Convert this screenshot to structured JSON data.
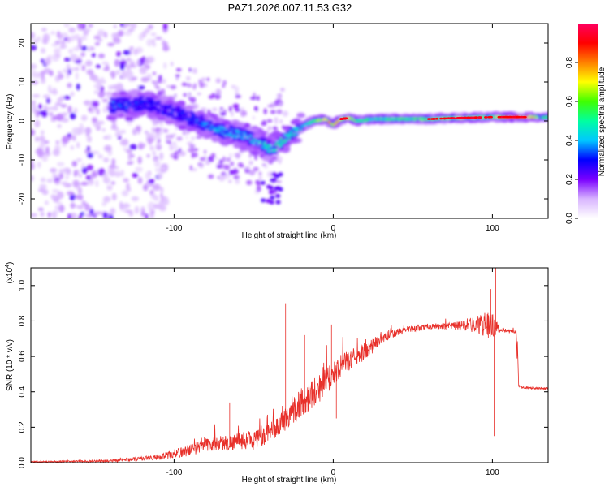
{
  "title": "PAZ1.2026.007.11.53.G32",
  "chart_data": [
    {
      "type": "heatmap",
      "xlabel": "Height of straight line (km)",
      "ylabel": "Frequency (Hz)",
      "xlim": [
        -190,
        135
      ],
      "ylim": [
        -25,
        25
      ],
      "xticks": [
        -100,
        0,
        100
      ],
      "xtick_labels": [
        "-100",
        "0",
        "100"
      ],
      "yticks": [
        -20,
        -10,
        0,
        10,
        20
      ],
      "ytick_labels": [
        "-20",
        "-10",
        "0",
        "10",
        "20"
      ],
      "colorbar": {
        "label": "Normalized spectral amplitude",
        "range": [
          0,
          1
        ],
        "ticks": [
          0.0,
          0.2,
          0.4,
          0.6,
          0.8
        ],
        "tick_labels": [
          "0.0",
          "0.2",
          "0.4",
          "0.6",
          "0.8"
        ],
        "colormap": [
          "#ffffff",
          "#d8b4ff",
          "#7a00ff",
          "#0000ff",
          "#00c8ff",
          "#00ffa0",
          "#40ff00",
          "#ffff00",
          "#ff8000",
          "#ff0000",
          "#ff0060"
        ]
      },
      "ridge": {
        "x": [
          -135,
          -120,
          -105,
          -95,
          -85,
          -75,
          -65,
          -55,
          -45,
          -38,
          -32,
          -25,
          -18,
          -12,
          -5,
          0,
          5,
          10,
          15,
          25,
          40,
          60,
          80,
          100,
          115,
          135
        ],
        "freq": [
          4,
          4.5,
          3,
          1.5,
          0,
          -2,
          -3,
          -4,
          -6,
          -7.5,
          -5,
          -3,
          -1,
          0,
          0.5,
          -1,
          0.5,
          0.8,
          0,
          0.5,
          0.5,
          0.5,
          0.8,
          1,
          1,
          1
        ],
        "amp": [
          0.35,
          0.3,
          0.3,
          0.3,
          0.35,
          0.4,
          0.4,
          0.4,
          0.45,
          0.5,
          0.5,
          0.5,
          0.45,
          0.6,
          0.7,
          0.8,
          0.7,
          0.75,
          0.6,
          0.5,
          0.55,
          0.6,
          0.7,
          0.6,
          0.95,
          0.5
        ]
      }
    },
    {
      "type": "line",
      "xlabel": "Height of straight line (km)",
      "ylabel": "SNR (10 * v/v)",
      "multiplier": "(x10^4)",
      "multiplier_base": "(x10",
      "multiplier_exp": "4",
      "xlim": [
        -190,
        135
      ],
      "ylim": [
        0,
        1.1
      ],
      "xticks": [
        -100,
        0,
        100
      ],
      "xtick_labels": [
        "-100",
        "0",
        "100"
      ],
      "yticks": [
        0.0,
        0.2,
        0.4,
        0.6,
        0.8,
        1.0
      ],
      "ytick_labels": [
        "0.0",
        "0.2",
        "0.4",
        "0.6",
        "0.8",
        "1.0"
      ],
      "color": "#e8302a",
      "envelope": {
        "x": [
          -190,
          -140,
          -110,
          -95,
          -80,
          -60,
          -45,
          -35,
          -25,
          -15,
          -5,
          5,
          20,
          30,
          45,
          60,
          75,
          90,
          99,
          102,
          105,
          115,
          116,
          125,
          135
        ],
        "y": [
          0.005,
          0.01,
          0.03,
          0.06,
          0.1,
          0.12,
          0.14,
          0.2,
          0.3,
          0.38,
          0.45,
          0.55,
          0.63,
          0.7,
          0.75,
          0.77,
          0.77,
          0.78,
          0.78,
          0.76,
          0.75,
          0.74,
          0.43,
          0.42,
          0.42
        ],
        "noise": [
          0.003,
          0.006,
          0.015,
          0.03,
          0.04,
          0.05,
          0.05,
          0.06,
          0.08,
          0.09,
          0.08,
          0.06,
          0.05,
          0.03,
          0.02,
          0.015,
          0.02,
          0.05,
          0.08,
          0.05,
          0.01,
          0.01,
          0.006,
          0.006,
          0.006
        ]
      },
      "spikes": [
        {
          "x": -65,
          "y": 0.34
        },
        {
          "x": -30,
          "y": 0.9
        },
        {
          "x": -18,
          "y": 0.72
        },
        {
          "x": -1,
          "y": 0.78
        },
        {
          "x": 2,
          "y": 0.25
        },
        {
          "x": 99,
          "y": 0.98
        },
        {
          "x": 101,
          "y": 0.15
        },
        {
          "x": 102,
          "y": 1.1
        }
      ]
    }
  ]
}
